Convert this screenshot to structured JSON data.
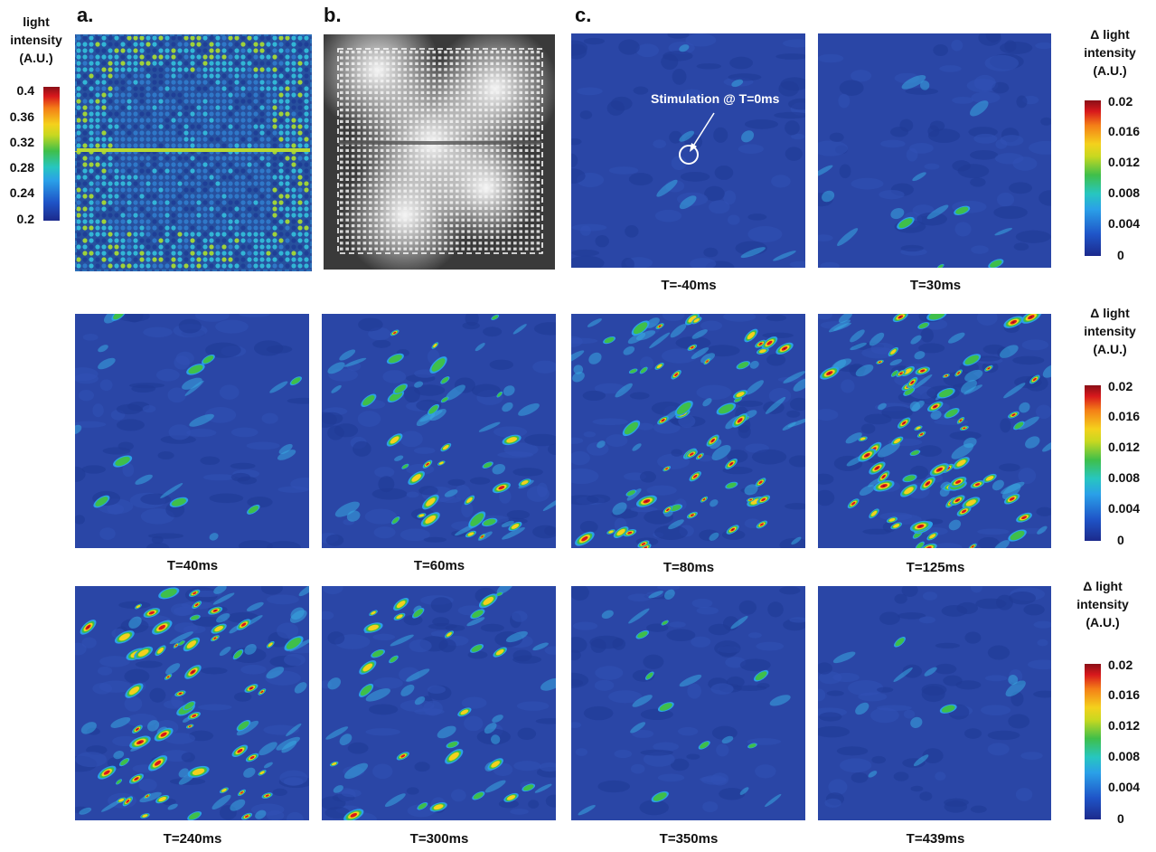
{
  "figure": {
    "panel_labels": {
      "a": "a.",
      "b": "b.",
      "c": "c."
    },
    "colorbar_a": {
      "title_lines": [
        "light",
        "intensity",
        "(A.U.)"
      ],
      "ticks": [
        "0.4",
        "0.36",
        "0.32",
        "0.28",
        "0.24",
        "0.2"
      ],
      "range": [
        0.2,
        0.4
      ]
    },
    "colorbar_c": {
      "title_lines": [
        "Δ  light",
        "intensity",
        "(A.U.)"
      ],
      "ticks": [
        "0.02",
        "0.016",
        "0.012",
        "0.008",
        "0.004",
        "0"
      ],
      "range": [
        0,
        0.02
      ]
    },
    "annotation": "Stimulation @ T=0ms",
    "frames": [
      {
        "label": "T=-40ms",
        "activity": 0.0
      },
      {
        "label": "T=30ms",
        "activity": 0.05
      },
      {
        "label": "T=40ms",
        "activity": 0.12
      },
      {
        "label": "T=60ms",
        "activity": 0.45
      },
      {
        "label": "T=80ms",
        "activity": 0.75
      },
      {
        "label": "T=125ms",
        "activity": 0.95
      },
      {
        "label": "T=240ms",
        "activity": 0.8
      },
      {
        "label": "T=300ms",
        "activity": 0.4
      },
      {
        "label": "T=350ms",
        "activity": 0.12
      },
      {
        "label": "T=439ms",
        "activity": 0.03
      }
    ],
    "colors": {
      "base_blue": "#243f9e",
      "scale": [
        "#1c2a8c",
        "#1f55c8",
        "#2aa0e8",
        "#27c6c0",
        "#3fbf4a",
        "#c8d820",
        "#f4d11c",
        "#f47e17",
        "#d8181c",
        "#8a0f17"
      ]
    }
  }
}
